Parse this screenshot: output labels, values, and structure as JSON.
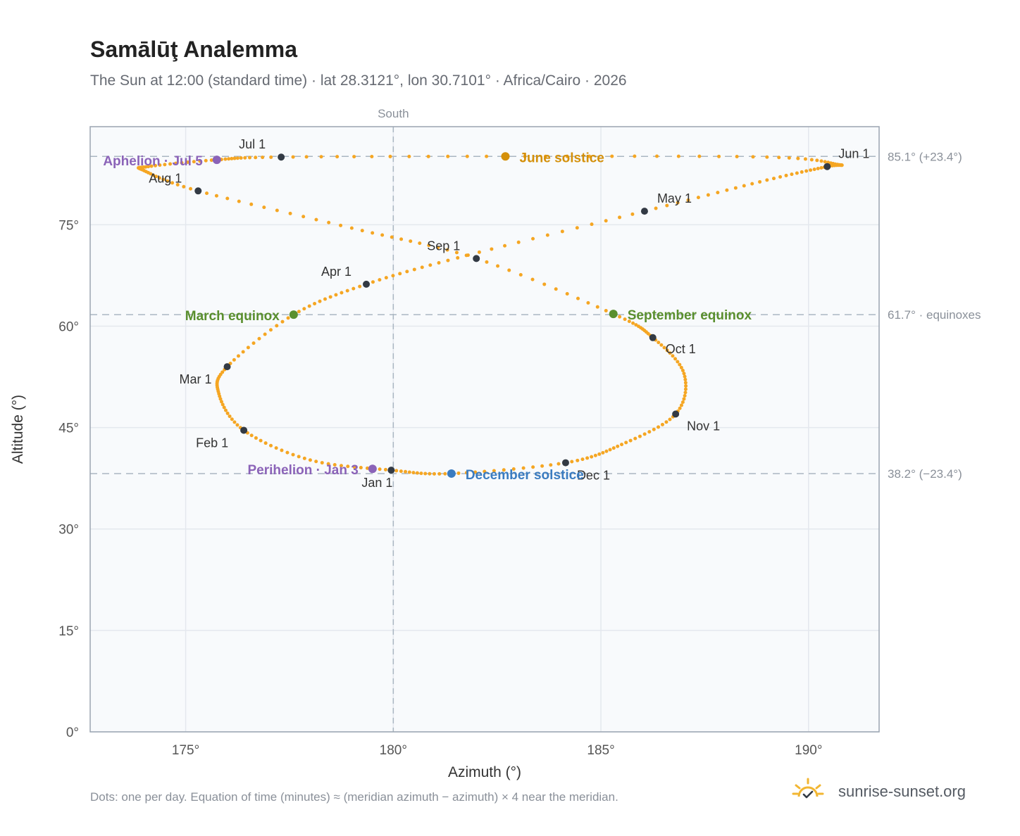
{
  "header": {
    "title": "Samālūţ Analemma",
    "subtitle": "The Sun at 12:00 (standard time) · lat 28.3121°, lon 30.7101° · Africa/Cairo · 2026"
  },
  "footer": {
    "note": "Dots: one per day. Equation of time (minutes) ≈ (meridian azimuth − azimuth) × 4 near the meridian.",
    "brand": "sunrise-sunset.org"
  },
  "colors": {
    "path": "#f5a623",
    "month_marker": "#333a44",
    "solstice_june": "#d4900a",
    "solstice_december": "#3b7cc0",
    "equinox": "#5a8f2e",
    "apsis": "#8b63b8",
    "grid": "#e4e8ee",
    "reference_line": "#aab6c2",
    "plot_bg": "#f8fafc"
  },
  "chart_data": {
    "type": "scatter",
    "xlabel": "Azimuth (°)",
    "ylabel": "Altitude (°)",
    "xlim": [
      172.7,
      191.7
    ],
    "ylim": [
      0,
      89.5
    ],
    "xticks": [
      175,
      180,
      185,
      190
    ],
    "yticks": [
      0,
      15,
      30,
      45,
      60,
      75
    ],
    "xtick_labels": [
      "175°",
      "180°",
      "185°",
      "190°"
    ],
    "ytick_labels": [
      "0°",
      "15°",
      "30°",
      "45°",
      "60°",
      "75°"
    ],
    "grid": true,
    "meridian": {
      "azimuth": 180,
      "label": "South"
    },
    "reference_lines": [
      {
        "altitude": 85.1,
        "label": "85.1° (+23.4°)"
      },
      {
        "altitude": 61.7,
        "label": "61.7° · equinoxes"
      },
      {
        "altitude": 38.2,
        "label": "38.2° (−23.4°)"
      }
    ],
    "month_markers": [
      {
        "label": "Jan 1",
        "azimuth": 179.95,
        "altitude": 38.7
      },
      {
        "label": "Feb 1",
        "azimuth": 176.4,
        "altitude": 44.6
      },
      {
        "label": "Mar 1",
        "azimuth": 176.0,
        "altitude": 54.0
      },
      {
        "label": "Apr 1",
        "azimuth": 179.35,
        "altitude": 66.2
      },
      {
        "label": "May 1",
        "azimuth": 186.05,
        "altitude": 77.0
      },
      {
        "label": "Jun 1",
        "azimuth": 190.45,
        "altitude": 83.6
      },
      {
        "label": "Jul 1",
        "azimuth": 177.3,
        "altitude": 85.0
      },
      {
        "label": "Aug 1",
        "azimuth": 175.3,
        "altitude": 80.0
      },
      {
        "label": "Sep 1",
        "azimuth": 182.0,
        "altitude": 70.0
      },
      {
        "label": "Oct 1",
        "azimuth": 186.25,
        "altitude": 58.3
      },
      {
        "label": "Nov 1",
        "azimuth": 186.8,
        "altitude": 47.0
      },
      {
        "label": "Dec 1",
        "azimuth": 184.15,
        "altitude": 39.8
      }
    ],
    "events": [
      {
        "label": "June solstice",
        "azimuth": 182.7,
        "altitude": 85.1,
        "kind": "solstice_june"
      },
      {
        "label": "December solstice",
        "azimuth": 181.4,
        "altitude": 38.2,
        "kind": "solstice_december"
      },
      {
        "label": "March equinox",
        "azimuth": 177.6,
        "altitude": 61.7,
        "kind": "equinox"
      },
      {
        "label": "September equinox",
        "azimuth": 185.3,
        "altitude": 61.8,
        "kind": "equinox"
      },
      {
        "label": "Aphelion · Jul 5",
        "azimuth": 175.75,
        "altitude": 84.6,
        "kind": "apsis"
      },
      {
        "label": "Perihelion · Jan 3",
        "azimuth": 179.5,
        "altitude": 38.9,
        "kind": "apsis"
      }
    ]
  }
}
